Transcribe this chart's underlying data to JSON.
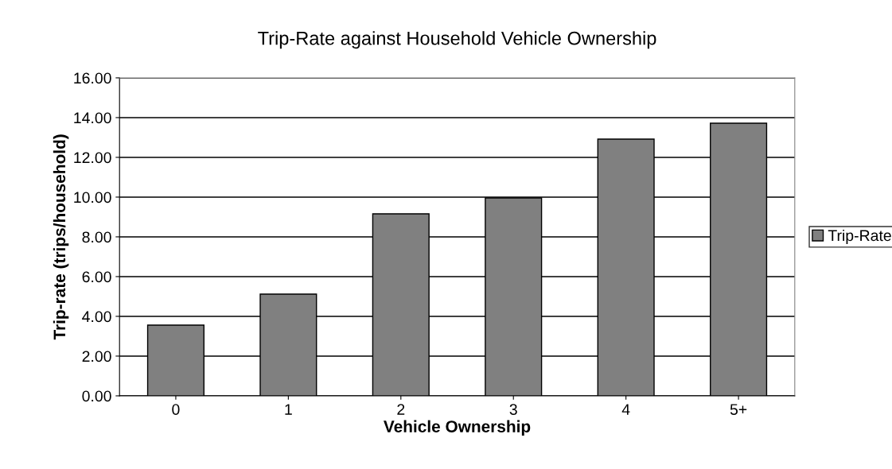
{
  "chart_data": {
    "type": "bar",
    "title": "Trip-Rate against Household Vehicle Ownership",
    "xlabel": "Vehicle Ownership",
    "ylabel": "Trip-rate (trips/household)",
    "categories": [
      "0",
      "1",
      "2",
      "3",
      "4",
      "5+"
    ],
    "series": [
      {
        "name": "Trip-Rate",
        "color": "#808080",
        "values": [
          3.56,
          5.12,
          9.16,
          9.96,
          12.92,
          13.72
        ]
      }
    ],
    "ylim": [
      0,
      16
    ],
    "yticks": [
      {
        "value": 0,
        "label": "0.00"
      },
      {
        "value": 2,
        "label": "2.00"
      },
      {
        "value": 4,
        "label": "4.00"
      },
      {
        "value": 6,
        "label": "6.00"
      },
      {
        "value": 8,
        "label": "8.00"
      },
      {
        "value": 10,
        "label": "10.00"
      },
      {
        "value": 12,
        "label": "12.00"
      },
      {
        "value": 14,
        "label": "14.00"
      },
      {
        "value": 16,
        "label": "16.00"
      }
    ],
    "grid": "y",
    "legend": "right"
  }
}
